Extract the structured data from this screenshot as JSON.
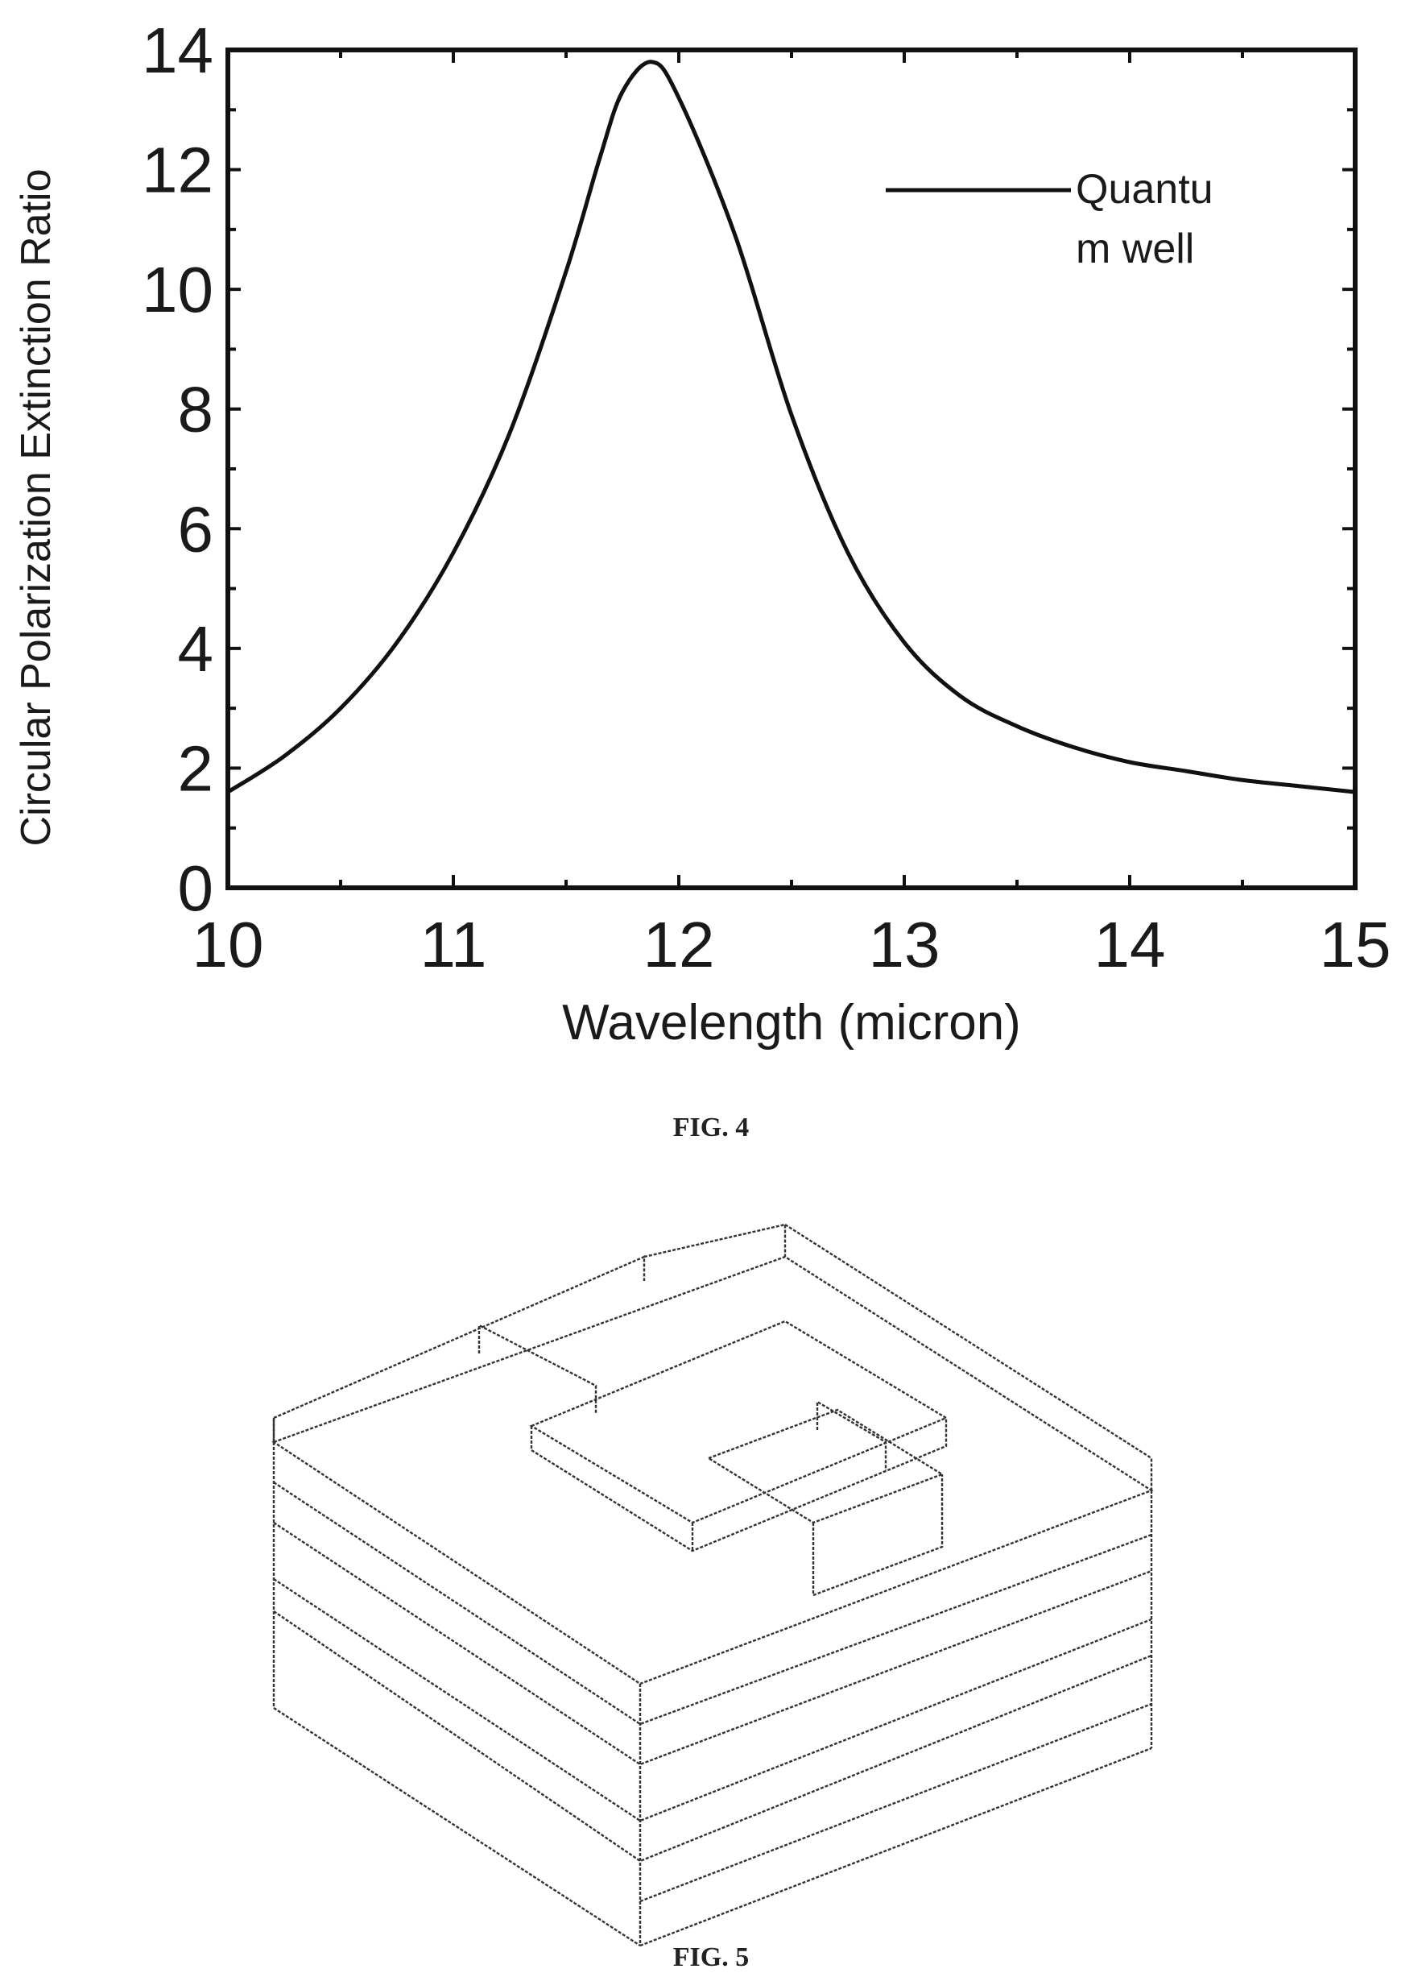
{
  "chart_data": {
    "type": "line",
    "xlabel": "Wavelength (micron)",
    "ylabel": "Circular Polarization Extinction Ratio",
    "xlim": [
      10,
      15
    ],
    "ylim": [
      0,
      14
    ],
    "xticks": [
      "10",
      "11",
      "12",
      "13",
      "14",
      "15"
    ],
    "yticks": [
      "0",
      "2",
      "4",
      "6",
      "8",
      "10",
      "12",
      "14"
    ],
    "grid": false,
    "legend": {
      "position": "top-right",
      "entries": [
        "Quantu",
        "m well"
      ]
    },
    "series": [
      {
        "name": "Quantum well",
        "color": "#111111",
        "x": [
          10.0,
          10.25,
          10.5,
          10.75,
          11.0,
          11.25,
          11.5,
          11.65,
          11.75,
          11.88,
          12.0,
          12.25,
          12.5,
          12.75,
          13.0,
          13.25,
          13.5,
          13.75,
          14.0,
          14.25,
          14.5,
          14.75,
          15.0
        ],
        "y": [
          1.6,
          2.2,
          3.0,
          4.1,
          5.6,
          7.6,
          10.3,
          12.2,
          13.3,
          13.8,
          13.2,
          10.9,
          7.9,
          5.6,
          4.1,
          3.2,
          2.7,
          2.35,
          2.1,
          1.95,
          1.8,
          1.7,
          1.6
        ]
      }
    ]
  },
  "figure_captions": {
    "fig4": "FIG. 4",
    "fig5": "FIG. 5"
  }
}
